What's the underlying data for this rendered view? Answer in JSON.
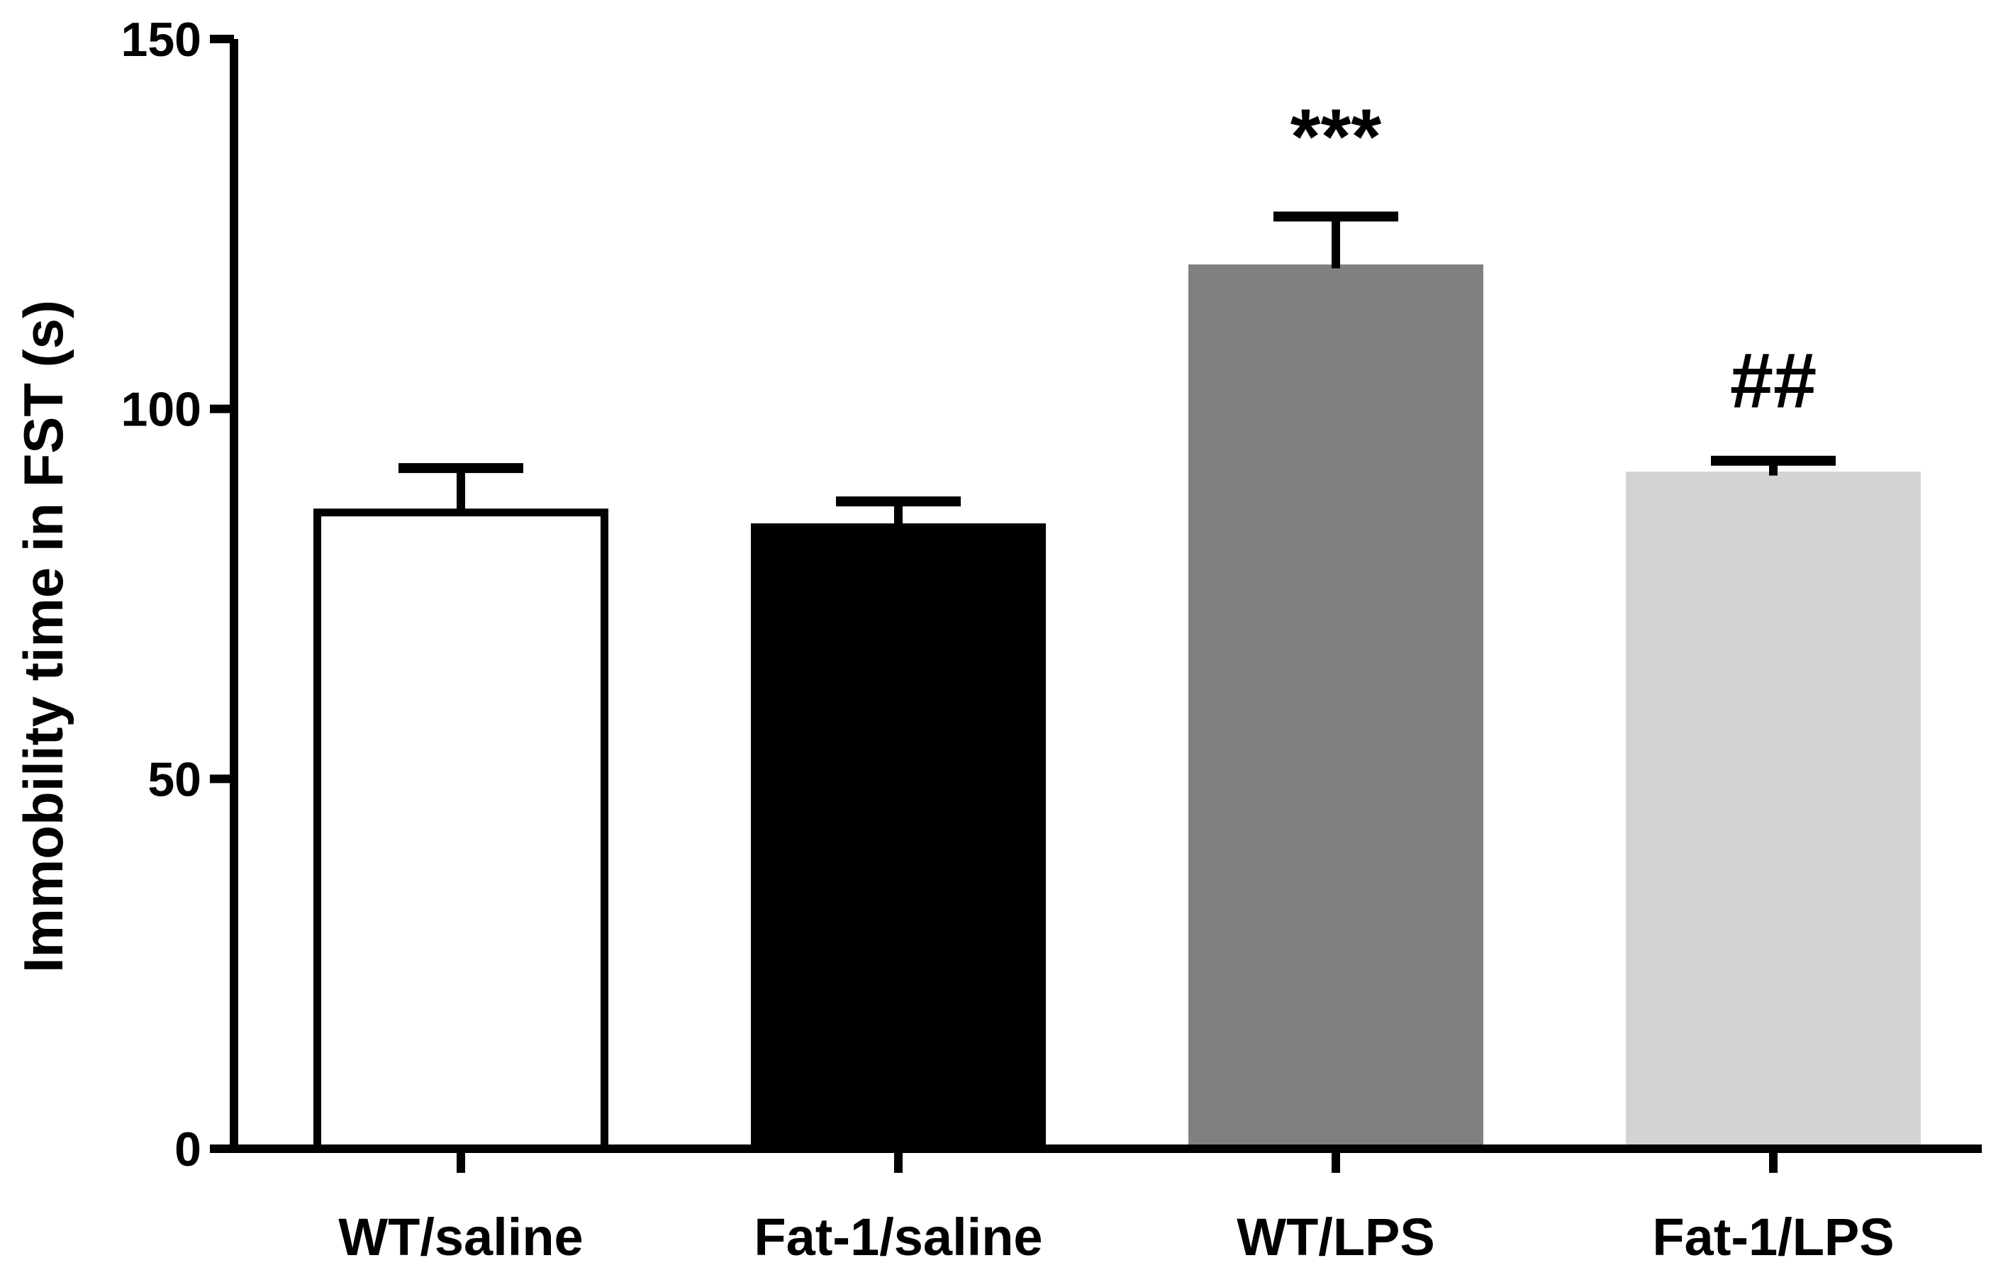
{
  "chart_data": {
    "type": "bar",
    "title": "",
    "xlabel": "",
    "ylabel": "Immobility time in FST (s)",
    "ylim": [
      0,
      150
    ],
    "yticks": [
      0,
      50,
      100,
      150
    ],
    "ytick_labels": [
      "0",
      "50",
      "100",
      "150"
    ],
    "categories": [
      "WT/saline",
      "Fat-1/saline",
      "WT/LPS",
      "Fat-1/LPS"
    ],
    "values": [
      86,
      84,
      119,
      91
    ],
    "errors": [
      6,
      3.5,
      7,
      2
    ],
    "bar_colors": [
      "#ffffff",
      "#000000",
      "#808080",
      "#d3d3d3"
    ],
    "bar_outline": [
      "#000000",
      "#000000",
      "#808080",
      "#d3d3d3"
    ],
    "annotations": [
      "",
      "",
      "***",
      "##"
    ],
    "grid": false
  }
}
